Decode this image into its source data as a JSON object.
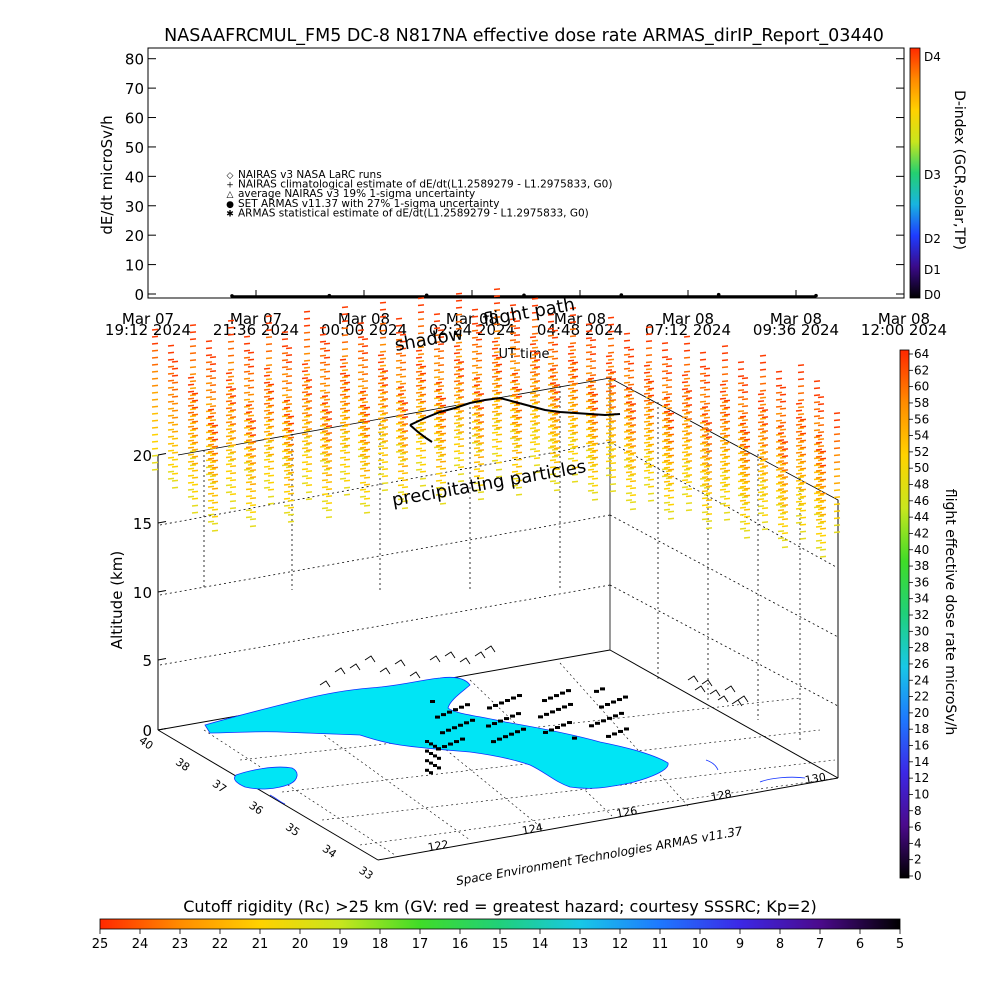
{
  "header": {
    "title": "NASAAFRCMUL_FM5 DC-8    N817NA effective dose rate ARMAS_dirIP_Report_03440"
  },
  "top_chart": {
    "ylabel": "dE/dt microSv/h",
    "xlabel": "UT time",
    "ytick_labels": [
      "0",
      "10",
      "20",
      "30",
      "40",
      "50",
      "60",
      "70",
      "80"
    ],
    "xtick_labels": [
      [
        "Mar 07",
        "19:12 2024"
      ],
      [
        "Mar 07",
        "21:36 2024"
      ],
      [
        "Mar 08",
        "00:00 2024"
      ],
      [
        "Mar 08",
        "02:24 2024"
      ],
      [
        "Mar 08",
        "04:48 2024"
      ],
      [
        "Mar 08",
        "07:12 2024"
      ],
      [
        "Mar 08",
        "09:36 2024"
      ],
      [
        "Mar 08",
        "12:00 2024"
      ]
    ],
    "legend": [
      {
        "symbol": "◇",
        "label": "NAIRAS v3 NASA LaRC runs"
      },
      {
        "symbol": "+",
        "label": "NAIRAS climatological estimate of dE/dt(L1.2589279 - L1.2975833, G0)"
      },
      {
        "symbol": "△",
        "label": "average NAIRAS v3 19% 1-sigma uncertainty"
      },
      {
        "symbol": "●",
        "label": "SET ARMAS v11.37 with 27% 1-sigma uncertainty"
      },
      {
        "symbol": "✱",
        "label": "ARMAS statistical estimate of dE/dt(L1.2589279 - L1.2975833, G0)"
      }
    ],
    "right_colorbar": {
      "label": "D-index (GCR,solar,TP)",
      "tick_labels": [
        "D0",
        "D1",
        "D2",
        "D3",
        "D4"
      ],
      "colors": [
        "#000000",
        "#3a0a8a",
        "#1e3cff",
        "#18b4e0",
        "#24d070",
        "#c8e61e",
        "#ffd200",
        "#ff8a00",
        "#ff2a00"
      ]
    }
  },
  "chart_data": [
    {
      "type": "scatter",
      "title": "NASAAFRCMUL_FM5 DC-8    N817NA effective dose rate ARMAS_dirIP_Report_03440",
      "xlabel": "UT time",
      "ylabel": "dE/dt microSv/h",
      "ylim": [
        0,
        80
      ],
      "x_range": [
        "Mar 07 19:12 2024",
        "Mar 08 12:00 2024"
      ],
      "series": [
        {
          "name": "SET ARMAS v11.37 with 27% 1-sigma uncertainty",
          "x": [
            "Mar 07 21:36 2024",
            "Mar 08 00:00 2024",
            "Mar 08 02:24 2024",
            "Mar 08 04:48 2024",
            "Mar 08 07:12 2024",
            "Mar 08 09:36 2024",
            "Mar 08 10:15 2024"
          ],
          "y": [
            0.2,
            0.3,
            0.4,
            0.4,
            0.5,
            0.6,
            0.3
          ]
        }
      ],
      "legend_position": "center-left",
      "grid": false
    },
    {
      "type": "scatter",
      "title": "",
      "xlabel": "",
      "ylabel": "Altitude (km)",
      "zlim": [
        0,
        20
      ],
      "ylim_lat": [
        33,
        40
      ],
      "xlim_lon": [
        121,
        131
      ],
      "annotations": [
        "shadow",
        "flight path",
        "precipitating particles",
        "Space Environment Technologies ARMAS v11.37"
      ],
      "grid": true
    }
  ],
  "bottom_panel": {
    "zlabel": "Altitude (km)",
    "z_ticks": [
      "0",
      "5",
      "10",
      "15",
      "20"
    ],
    "lat_ticks": [
      "33",
      "34",
      "35",
      "36",
      "37",
      "38",
      "40"
    ],
    "lon_ticks": [
      "122",
      "124",
      "126",
      "128",
      "130"
    ],
    "labels": {
      "shadow": "shadow",
      "flight_path": "flight path",
      "precipitating": "precipitating particles",
      "credit": "Space Environment Technologies ARMAS v11.37"
    },
    "right_colorbar": {
      "label": "flight effective dose rate microSv/h",
      "tick_labels": [
        "0",
        "2",
        "4",
        "6",
        "8",
        "10",
        "12",
        "14",
        "16",
        "18",
        "20",
        "22",
        "24",
        "26",
        "28",
        "30",
        "32",
        "34",
        "36",
        "38",
        "40",
        "42",
        "44",
        "46",
        "48",
        "50",
        "52",
        "54",
        "56",
        "58",
        "60",
        "62",
        "64"
      ],
      "colors": [
        "#000000",
        "#4b0a8c",
        "#3c28e6",
        "#1e78ff",
        "#18c8e6",
        "#20d07a",
        "#40dc28",
        "#c8e61e",
        "#ffd200",
        "#ff8c00",
        "#ff2800"
      ]
    },
    "land_color": "#00e5f5",
    "coast_color": "#1030ff"
  },
  "bottom_colorbar": {
    "title": "Cutoff rigidity (Rc) >25 km (GV: red = greatest hazard; courtesy SSSRC; Kp=2)",
    "tick_labels": [
      "25",
      "24",
      "23",
      "22",
      "21",
      "20",
      "19",
      "18",
      "17",
      "16",
      "15",
      "14",
      "13",
      "12",
      "11",
      "10",
      "9",
      "8",
      "7",
      "6",
      "5"
    ],
    "colors": [
      "#000000",
      "#4b0a8c",
      "#3c28e6",
      "#1e78ff",
      "#18c8e6",
      "#20d07a",
      "#40dc28",
      "#c8e61e",
      "#ffd200",
      "#ff8c00",
      "#ff2800"
    ]
  }
}
